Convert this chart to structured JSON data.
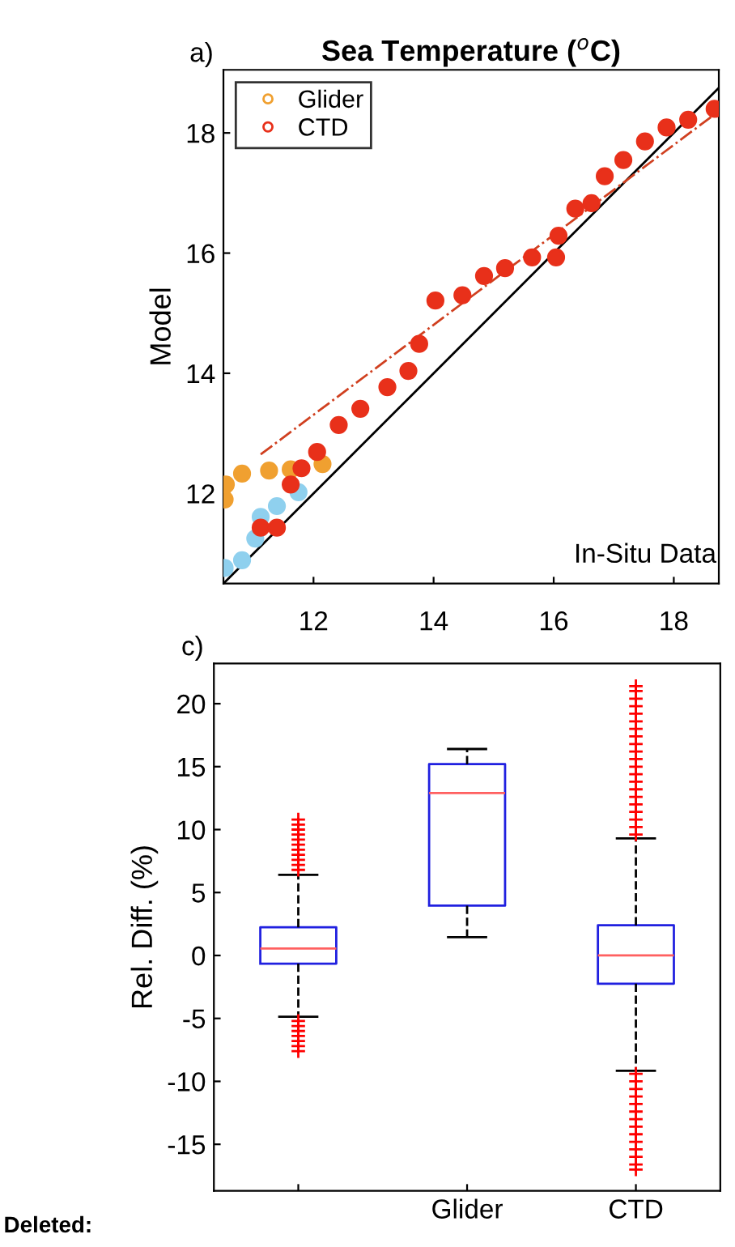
{
  "chart_data": [
    {
      "type": "scatter",
      "title": "Sea Temperature ($^{o}$C)",
      "xlabel": "In-Situ Data",
      "ylabel": "Model",
      "xlim": [
        10.5,
        18.75
      ],
      "ylim": [
        10.5,
        19.05
      ],
      "xticks": [
        12,
        14,
        16,
        18
      ],
      "yticks": [
        12,
        14,
        16,
        18
      ],
      "legend": "top left",
      "grid": false,
      "annotations": [
        "a)"
      ],
      "series": [
        {
          "color": "#8fd0ee",
          "marker": "circle",
          "x": [
            10.52,
            10.81,
            11.03,
            11.12,
            11.39,
            11.75
          ],
          "values": [
            10.76,
            10.89,
            11.25,
            11.61,
            11.79,
            12.02
          ]
        },
        {
          "name": "Glider",
          "color": "#f0a030",
          "marker": "circle",
          "x": [
            10.52,
            10.54,
            10.81,
            11.26,
            11.62,
            11.88,
            12.15
          ],
          "values": [
            11.9,
            12.15,
            12.33,
            12.38,
            12.4,
            null,
            12.49
          ]
        },
        {
          "name": "CTD",
          "color": "#e8301a",
          "marker": "circle",
          "x": [
            11.12,
            11.39,
            11.62,
            11.8,
            12.06,
            12.42,
            12.78,
            13.23,
            13.58,
            13.76,
            14.03,
            14.48,
            14.84,
            15.19,
            15.64,
            16.04,
            16.08,
            16.36,
            16.63,
            16.85,
            17.16,
            17.52,
            17.88,
            18.24,
            18.68
          ],
          "values": [
            11.43,
            11.43,
            12.15,
            12.42,
            12.69,
            13.14,
            13.41,
            13.77,
            14.04,
            14.49,
            15.21,
            15.3,
            15.62,
            15.75,
            15.93,
            15.93,
            16.29,
            16.74,
            16.83,
            17.28,
            17.55,
            17.86,
            18.09,
            18.22,
            18.4
          ]
        },
        {
          "type": "line",
          "color": "#000000",
          "line_style": "solid",
          "x": [
            10.5,
            18.75
          ],
          "values": [
            10.5,
            18.75
          ]
        },
        {
          "type": "line",
          "color": "#d04020",
          "line_style": "dashdot",
          "x": [
            11.12,
            18.68
          ],
          "values": [
            12.65,
            18.31
          ]
        }
      ]
    },
    {
      "type": "box",
      "ylabel": "Rel. Diff. (%)",
      "categories": [
        null,
        "Glider",
        "CTD"
      ],
      "ylim": [
        -18.7,
        23.2
      ],
      "yticks": [
        -15,
        -10,
        -5,
        0,
        5,
        10,
        15,
        20
      ],
      "grid": false,
      "annotations": [
        "c)",
        "Deleted:"
      ],
      "boxes": [
        {
          "low": -4.86,
          "q1": -0.65,
          "median": 0.56,
          "q3": 2.24,
          "high": 6.4,
          "outliers": [
            6.8,
            7.2,
            7.6,
            8.0,
            8.4,
            8.8,
            9.2,
            9.6,
            10.0,
            10.4,
            10.8,
            -5.2,
            -5.6,
            -6.0,
            -6.4,
            -6.8,
            -7.2,
            -7.6
          ]
        },
        {
          "low": 1.46,
          "q1": 3.96,
          "median": 12.9,
          "q3": 15.2,
          "high": 16.4
        },
        {
          "low": -9.16,
          "q1": -2.24,
          "median": 0.0,
          "q3": 2.4,
          "high": 9.3,
          "outliers": [
            9.6,
            10.2,
            10.8,
            11.4,
            12.0,
            12.6,
            13.2,
            13.8,
            14.4,
            15.0,
            15.6,
            16.2,
            16.8,
            17.4,
            18.0,
            18.6,
            19.2,
            19.8,
            20.4,
            21.0,
            21.4,
            -9.4,
            -10.0,
            -10.6,
            -11.2,
            -11.8,
            -12.4,
            -13.0,
            -13.6,
            -14.2,
            -14.8,
            -15.4,
            -16.0,
            -16.6,
            -17.0
          ]
        }
      ]
    }
  ]
}
